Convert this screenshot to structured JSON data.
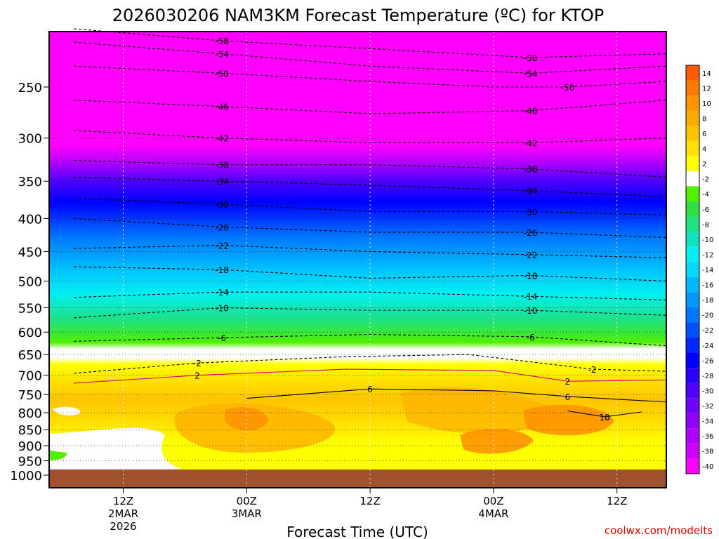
{
  "chart_data": {
    "type": "heatmap",
    "title": "2026030206 NAM3KM Forecast Temperature (ºC) for KTOP",
    "xlabel": "Forecast Time (UTC)",
    "ylabel": "",
    "credit": "coolwx.com/modelts",
    "y_axis": {
      "scale": "pressure-log",
      "range_hPa": [
        1000,
        200
      ],
      "tick_labels": [
        "250",
        "300",
        "350",
        "400",
        "450",
        "500",
        "550",
        "600",
        "650",
        "700",
        "750",
        "800",
        "850",
        "900",
        "950",
        "1000"
      ],
      "tick_values": [
        250,
        300,
        350,
        400,
        450,
        500,
        550,
        600,
        650,
        700,
        750,
        800,
        850,
        900,
        950,
        1000
      ]
    },
    "x_axis": {
      "range_hours": [
        6,
        56
      ],
      "ticks": [
        {
          "hour": 12,
          "lines": [
            "12Z",
            "2MAR",
            "2026"
          ]
        },
        {
          "hour": 22,
          "lines": [
            "00Z",
            "3MAR"
          ]
        },
        {
          "hour": 32,
          "lines": [
            "12Z"
          ]
        },
        {
          "hour": 42,
          "lines": [
            "00Z",
            "4MAR"
          ]
        },
        {
          "hour": 52,
          "lines": [
            "12Z"
          ]
        }
      ]
    },
    "colorbar": {
      "labels": [
        "14",
        "12",
        "10",
        "8",
        "6",
        "4",
        "2",
        "-2",
        "-4",
        "-6",
        "-8",
        "-10",
        "-12",
        "-14",
        "-16",
        "-18",
        "-20",
        "-22",
        "-24",
        "-26",
        "-28",
        "-30",
        "-32",
        "-34",
        "-36",
        "-38",
        "-40"
      ],
      "colors": [
        "#ff5a00",
        "#ff7800",
        "#ff9400",
        "#ffaa00",
        "#ffc400",
        "#ffe000",
        "#ffff00",
        "#ffffff",
        "#50f000",
        "#30e040",
        "#20e080",
        "#10e0c0",
        "#00f0f0",
        "#00d8ff",
        "#00b8ff",
        "#0098ff",
        "#0078ff",
        "#0050ff",
        "#0028ff",
        "#0000ff",
        "#2800ff",
        "#5000ff",
        "#7000ff",
        "#9000ff",
        "#b000ff",
        "#d000ff",
        "#ff00ff"
      ]
    },
    "contours": [
      {
        "label": "-58",
        "values": [
          [
            8,
            203
          ],
          [
            20,
            212
          ],
          [
            32,
            218
          ],
          [
            45,
            225
          ],
          [
            56,
            222
          ]
        ]
      },
      {
        "label": "-54",
        "values": [
          [
            8,
            213
          ],
          [
            20,
            222
          ],
          [
            32,
            232
          ],
          [
            45,
            238
          ],
          [
            56,
            232
          ]
        ]
      },
      {
        "label": "-50",
        "values": [
          [
            8,
            232
          ],
          [
            20,
            238
          ],
          [
            32,
            245
          ],
          [
            42,
            250
          ],
          [
            48,
            250
          ],
          [
            56,
            245
          ]
        ]
      },
      {
        "label": "-46",
        "values": [
          [
            8,
            262
          ],
          [
            20,
            268
          ],
          [
            32,
            275
          ],
          [
            45,
            272
          ],
          [
            56,
            262
          ]
        ]
      },
      {
        "label": "-42",
        "values": [
          [
            8,
            292
          ],
          [
            20,
            300
          ],
          [
            32,
            305
          ],
          [
            45,
            305
          ],
          [
            56,
            300
          ]
        ]
      },
      {
        "label": "-38",
        "values": [
          [
            8,
            325
          ],
          [
            20,
            330
          ],
          [
            32,
            330
          ],
          [
            45,
            335
          ],
          [
            56,
            345
          ]
        ]
      },
      {
        "label": "-34",
        "values": [
          [
            8,
            345
          ],
          [
            20,
            350
          ],
          [
            32,
            355
          ],
          [
            45,
            362
          ],
          [
            56,
            370
          ]
        ]
      },
      {
        "label": "-30",
        "values": [
          [
            8,
            372
          ],
          [
            20,
            380
          ],
          [
            32,
            390
          ],
          [
            45,
            390
          ],
          [
            56,
            395
          ]
        ]
      },
      {
        "label": "-26",
        "values": [
          [
            8,
            400
          ],
          [
            20,
            412
          ],
          [
            32,
            420
          ],
          [
            45,
            420
          ],
          [
            56,
            428
          ]
        ]
      },
      {
        "label": "-22",
        "values": [
          [
            8,
            445
          ],
          [
            20,
            440
          ],
          [
            32,
            450
          ],
          [
            45,
            455
          ],
          [
            56,
            460
          ]
        ]
      },
      {
        "label": "-18",
        "values": [
          [
            8,
            475
          ],
          [
            20,
            480
          ],
          [
            32,
            495
          ],
          [
            45,
            490
          ],
          [
            56,
            500
          ]
        ]
      },
      {
        "label": "-14",
        "values": [
          [
            8,
            530
          ],
          [
            20,
            520
          ],
          [
            32,
            520
          ],
          [
            45,
            528
          ],
          [
            56,
            535
          ]
        ]
      },
      {
        "label": "-10",
        "values": [
          [
            8,
            570
          ],
          [
            20,
            550
          ],
          [
            32,
            555
          ],
          [
            45,
            555
          ],
          [
            56,
            565
          ]
        ]
      },
      {
        "label": "-6",
        "values": [
          [
            8,
            620
          ],
          [
            20,
            612
          ],
          [
            32,
            605
          ],
          [
            45,
            610
          ],
          [
            56,
            630
          ]
        ]
      },
      {
        "label": "-2",
        "values": [
          [
            8,
            695
          ],
          [
            18,
            670
          ],
          [
            30,
            655
          ],
          [
            40,
            650
          ],
          [
            50,
            685
          ],
          [
            56,
            690
          ]
        ]
      },
      {
        "label": "2",
        "values": [
          [
            8,
            720
          ],
          [
            18,
            700
          ],
          [
            30,
            685
          ],
          [
            42,
            688
          ],
          [
            48,
            715
          ],
          [
            56,
            712
          ]
        ]
      },
      {
        "label": "6",
        "values": [
          [
            22,
            760
          ],
          [
            32,
            735
          ],
          [
            42,
            740
          ],
          [
            48,
            755
          ],
          [
            56,
            770
          ]
        ]
      },
      {
        "label": "10",
        "values": [
          [
            48,
            795
          ],
          [
            51,
            812
          ],
          [
            54,
            798
          ]
        ]
      }
    ]
  }
}
